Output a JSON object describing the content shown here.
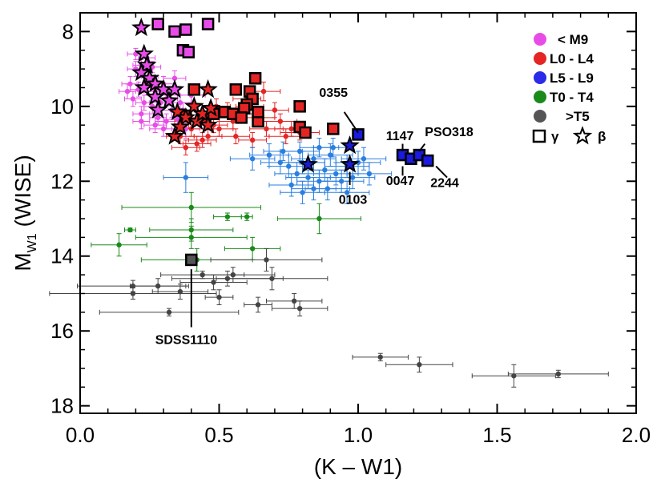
{
  "chart_data": {
    "type": "scatter",
    "xlabel": "(K – W1)",
    "ylabel_main": "M",
    "ylabel_sub": "W1",
    "ylabel_suffix": " (WISE)",
    "xlim": [
      0.0,
      2.0
    ],
    "ylim": [
      18.2,
      7.5
    ],
    "x_ticks": [
      0.0,
      0.5,
      1.0,
      1.5,
      2.0
    ],
    "x_tick_labels": [
      "0.0",
      "0.5",
      "1.0",
      "1.5",
      "2.0"
    ],
    "y_ticks": [
      8,
      10,
      12,
      14,
      16,
      18
    ],
    "y_tick_labels": [
      "8",
      "10",
      "12",
      "14",
      "16",
      "18"
    ],
    "colors": {
      "M9": "#e84ce8",
      "L0L4": "#e52424",
      "L5L9": "#2a7fe0",
      "L5L9_legend": "#2a2ae8",
      "T0T4": "#1a8a1a",
      "T5": "#444444",
      "gamma_blue": "#1a1ae0",
      "gamma_gray": "#555555",
      "beta_blue": "#1a1ad0"
    },
    "legend": [
      {
        "label": "< M9",
        "color": "#e84ce8"
      },
      {
        "label": "L0 - L4",
        "color": "#e52424"
      },
      {
        "label": "L5 - L9",
        "color": "#2a2ae8"
      },
      {
        "label": "T0 - T4",
        "color": "#1a8a1a"
      },
      {
        "label": ">T5",
        "color": "#555555"
      }
    ],
    "legend_symbols": {
      "gamma": "γ",
      "beta": "β"
    },
    "series": [
      {
        "name": "< M9",
        "color_key": "M9",
        "marker": "dot",
        "points": [
          [
            0.2,
            8.6,
            0.03,
            0.15
          ],
          [
            0.22,
            8.9,
            0.03,
            0.15
          ],
          [
            0.24,
            8.7,
            0.03,
            0.15
          ],
          [
            0.26,
            8.95,
            0.03,
            0.15
          ],
          [
            0.18,
            9.4,
            0.03,
            0.2
          ],
          [
            0.21,
            9.55,
            0.03,
            0.2
          ],
          [
            0.24,
            9.5,
            0.03,
            0.2
          ],
          [
            0.27,
            9.6,
            0.04,
            0.2
          ],
          [
            0.3,
            9.4,
            0.04,
            0.2
          ],
          [
            0.32,
            9.7,
            0.04,
            0.2
          ],
          [
            0.19,
            9.8,
            0.03,
            0.2
          ],
          [
            0.23,
            9.9,
            0.03,
            0.2
          ],
          [
            0.26,
            10.0,
            0.03,
            0.2
          ],
          [
            0.29,
            9.9,
            0.04,
            0.2
          ],
          [
            0.33,
            10.1,
            0.04,
            0.2
          ],
          [
            0.36,
            9.9,
            0.04,
            0.2
          ],
          [
            0.22,
            10.2,
            0.03,
            0.2
          ],
          [
            0.28,
            10.3,
            0.03,
            0.2
          ],
          [
            0.31,
            10.4,
            0.04,
            0.2
          ],
          [
            0.35,
            10.35,
            0.05,
            0.2
          ],
          [
            0.38,
            10.6,
            0.05,
            0.25
          ],
          [
            0.25,
            9.2,
            0.03,
            0.2
          ],
          [
            0.2,
            9.0,
            0.03,
            0.2
          ],
          [
            0.34,
            9.25,
            0.04,
            0.2
          ],
          [
            0.17,
            9.6,
            0.03,
            0.2
          ],
          [
            0.4,
            9.7,
            0.05,
            0.2
          ],
          [
            0.3,
            10.6,
            0.05,
            0.2
          ],
          [
            0.27,
            10.5,
            0.04,
            0.2
          ],
          [
            0.22,
            10.4,
            0.03,
            0.2
          ],
          [
            0.37,
            10.1,
            0.04,
            0.2
          ],
          [
            0.31,
            9.8,
            0.04,
            0.2
          ]
        ]
      },
      {
        "name": "L0 - L4",
        "color_key": "L0L4",
        "marker": "dot",
        "points": [
          [
            0.36,
            10.8,
            0.05,
            0.2
          ],
          [
            0.38,
            11.1,
            0.05,
            0.2
          ],
          [
            0.42,
            11.0,
            0.05,
            0.2
          ],
          [
            0.4,
            10.6,
            0.05,
            0.2
          ],
          [
            0.44,
            10.9,
            0.05,
            0.2
          ],
          [
            0.46,
            10.8,
            0.05,
            0.2
          ],
          [
            0.48,
            10.5,
            0.05,
            0.2
          ],
          [
            0.5,
            10.6,
            0.05,
            0.2
          ],
          [
            0.55,
            10.4,
            0.05,
            0.2
          ],
          [
            0.58,
            10.2,
            0.05,
            0.2
          ],
          [
            0.61,
            10.0,
            0.05,
            0.2
          ],
          [
            0.65,
            10.3,
            0.05,
            0.2
          ],
          [
            0.7,
            10.1,
            0.05,
            0.2
          ],
          [
            0.56,
            10.8,
            0.05,
            0.2
          ],
          [
            0.62,
            10.9,
            0.05,
            0.2
          ],
          [
            0.67,
            10.6,
            0.06,
            0.2
          ],
          [
            0.72,
            10.4,
            0.06,
            0.2
          ],
          [
            0.53,
            10.1,
            0.05,
            0.2
          ],
          [
            0.49,
            10.0,
            0.05,
            0.2
          ],
          [
            0.43,
            10.3,
            0.05,
            0.2
          ],
          [
            0.39,
            10.4,
            0.05,
            0.2
          ],
          [
            0.66,
            9.6,
            0.06,
            0.25
          ],
          [
            0.6,
            9.8,
            0.05,
            0.2
          ],
          [
            0.74,
            10.8,
            0.06,
            0.2
          ],
          [
            0.76,
            10.6,
            0.06,
            0.2
          ],
          [
            0.79,
            10.7,
            0.07,
            0.2
          ]
        ]
      },
      {
        "name": "L5 - L9",
        "color_key": "L5L9",
        "marker": "dot",
        "points": [
          [
            0.38,
            11.9,
            0.08,
            0.4
          ],
          [
            0.62,
            11.4,
            0.08,
            0.3
          ],
          [
            0.68,
            11.3,
            0.07,
            0.3
          ],
          [
            0.72,
            11.5,
            0.07,
            0.3
          ],
          [
            0.75,
            11.6,
            0.07,
            0.3
          ],
          [
            0.78,
            11.8,
            0.08,
            0.3
          ],
          [
            0.8,
            11.5,
            0.08,
            0.3
          ],
          [
            0.82,
            11.9,
            0.08,
            0.3
          ],
          [
            0.84,
            11.4,
            0.08,
            0.3
          ],
          [
            0.86,
            12.0,
            0.08,
            0.3
          ],
          [
            0.88,
            11.7,
            0.08,
            0.3
          ],
          [
            0.9,
            11.3,
            0.08,
            0.3
          ],
          [
            0.92,
            11.8,
            0.08,
            0.3
          ],
          [
            0.94,
            12.0,
            0.08,
            0.3
          ],
          [
            0.96,
            11.6,
            0.08,
            0.3
          ],
          [
            0.98,
            11.9,
            0.08,
            0.3
          ],
          [
            1.0,
            11.5,
            0.08,
            0.3
          ],
          [
            1.02,
            11.4,
            0.08,
            0.3
          ],
          [
            0.86,
            11.1,
            0.07,
            0.25
          ],
          [
            0.79,
            11.2,
            0.07,
            0.25
          ],
          [
            0.73,
            11.2,
            0.07,
            0.25
          ],
          [
            0.91,
            11.1,
            0.07,
            0.25
          ],
          [
            0.96,
            12.3,
            0.08,
            0.3
          ],
          [
            0.84,
            12.2,
            0.08,
            0.3
          ],
          [
            0.8,
            12.3,
            0.08,
            0.3
          ],
          [
            0.76,
            12.1,
            0.08,
            0.3
          ],
          [
            1.04,
            11.8,
            0.08,
            0.3
          ],
          [
            0.89,
            12.2,
            0.08,
            0.3
          ]
        ]
      },
      {
        "name": "T0 - T4",
        "color_key": "T0T4",
        "marker": "dot",
        "points": [
          [
            0.14,
            13.7,
            0.1,
            0.3
          ],
          [
            0.18,
            13.3,
            0.02,
            0.05
          ],
          [
            0.4,
            13.3,
            0.15,
            0.3
          ],
          [
            0.4,
            13.5,
            0.2,
            0.3
          ],
          [
            0.4,
            12.7,
            0.25,
            0.4
          ],
          [
            0.53,
            12.95,
            0.05,
            0.1
          ],
          [
            0.6,
            12.95,
            0.02,
            0.1
          ],
          [
            0.62,
            13.8,
            0.1,
            0.3
          ],
          [
            0.86,
            13.0,
            0.15,
            0.4
          ],
          [
            0.42,
            14.1,
            0.2,
            0.3
          ]
        ]
      },
      {
        "name": ">T5",
        "color_key": "T5",
        "marker": "dot",
        "points": [
          [
            0.19,
            14.8,
            0.2,
            0.15
          ],
          [
            0.19,
            15.0,
            0.3,
            0.15
          ],
          [
            0.28,
            14.8,
            0.1,
            0.2
          ],
          [
            0.36,
            14.95,
            0.1,
            0.2
          ],
          [
            0.32,
            15.5,
            0.25,
            0.1
          ],
          [
            0.44,
            14.5,
            0.15,
            0.1
          ],
          [
            0.48,
            14.7,
            0.12,
            0.2
          ],
          [
            0.5,
            15.1,
            0.05,
            0.2
          ],
          [
            0.53,
            14.6,
            0.2,
            0.2
          ],
          [
            0.55,
            14.5,
            0.15,
            0.2
          ],
          [
            0.64,
            15.3,
            0.05,
            0.2
          ],
          [
            0.67,
            14.1,
            0.2,
            0.3
          ],
          [
            0.69,
            14.6,
            0.2,
            0.3
          ],
          [
            0.77,
            15.2,
            0.1,
            0.2
          ],
          [
            0.79,
            15.4,
            0.1,
            0.2
          ],
          [
            1.08,
            16.7,
            0.1,
            0.1
          ],
          [
            1.22,
            16.9,
            0.12,
            0.2
          ],
          [
            1.56,
            17.2,
            0.15,
            0.3
          ],
          [
            1.72,
            17.15,
            0.18,
            0.1
          ]
        ]
      },
      {
        "name": "M9 gamma",
        "color_key": "M9",
        "marker": "square",
        "points": [
          [
            0.28,
            7.8
          ],
          [
            0.34,
            8.0
          ],
          [
            0.38,
            7.95
          ],
          [
            0.46,
            7.8
          ],
          [
            0.37,
            8.5
          ],
          [
            0.39,
            8.55
          ]
        ]
      },
      {
        "name": "L gamma",
        "color_key": "L0L4",
        "marker": "square",
        "points": [
          [
            0.41,
            9.55
          ],
          [
            0.56,
            9.55
          ],
          [
            0.63,
            9.25
          ],
          [
            0.61,
            9.6
          ],
          [
            0.62,
            9.8
          ],
          [
            0.6,
            9.95
          ],
          [
            0.59,
            10.05
          ],
          [
            0.52,
            10.15
          ],
          [
            0.55,
            10.2
          ],
          [
            0.58,
            10.3
          ],
          [
            0.64,
            10.4
          ],
          [
            0.64,
            10.15
          ],
          [
            0.79,
            10.0
          ],
          [
            0.79,
            10.55
          ],
          [
            0.81,
            10.7
          ],
          [
            0.91,
            10.6
          ],
          [
            0.45,
            10.3
          ],
          [
            0.48,
            10.2
          ],
          [
            0.38,
            10.25
          ]
        ]
      },
      {
        "name": "late-L gamma",
        "color_key": "gamma_blue",
        "marker": "square",
        "points": [
          [
            1.0,
            10.75
          ],
          [
            1.16,
            11.3
          ],
          [
            1.19,
            11.4
          ],
          [
            1.22,
            11.3
          ],
          [
            1.25,
            11.45
          ]
        ]
      },
      {
        "name": "T gamma",
        "color_key": "gamma_gray",
        "marker": "square",
        "points": [
          [
            0.4,
            14.1
          ]
        ]
      },
      {
        "name": "M9 beta",
        "color_key": "M9",
        "marker": "star",
        "points": [
          [
            0.22,
            7.9
          ],
          [
            0.23,
            8.6
          ],
          [
            0.24,
            8.9
          ],
          [
            0.22,
            9.1
          ],
          [
            0.25,
            9.25
          ],
          [
            0.27,
            9.4
          ],
          [
            0.23,
            9.5
          ],
          [
            0.3,
            9.55
          ],
          [
            0.27,
            9.75
          ],
          [
            0.32,
            9.85
          ],
          [
            0.34,
            9.55
          ],
          [
            0.28,
            10.1
          ]
        ]
      },
      {
        "name": "L beta",
        "color_key": "L0L4",
        "marker": "star",
        "points": [
          [
            0.35,
            10.15
          ],
          [
            0.38,
            10.3
          ],
          [
            0.41,
            10.0
          ],
          [
            0.42,
            10.4
          ],
          [
            0.44,
            10.2
          ],
          [
            0.46,
            9.55
          ],
          [
            0.47,
            10.05
          ],
          [
            0.34,
            10.8
          ],
          [
            0.46,
            10.5
          ],
          [
            0.36,
            10.55
          ]
        ]
      },
      {
        "name": "late-L beta",
        "color_key": "beta_blue",
        "marker": "star",
        "points": [
          [
            0.97,
            11.05
          ],
          [
            0.82,
            11.55
          ],
          [
            0.97,
            11.55
          ]
        ]
      }
    ],
    "annotations": [
      {
        "text": "0355",
        "x": 0.86,
        "y": 9.75,
        "anchor": "start",
        "line": [
          [
            0.95,
            10.15
          ],
          [
            1.0,
            10.7
          ]
        ]
      },
      {
        "text": "1147",
        "x": 1.1,
        "y": 10.9,
        "anchor": "start",
        "line": [
          [
            1.16,
            11.0
          ],
          [
            1.16,
            11.2
          ]
        ]
      },
      {
        "text": "PSO318",
        "x": 1.24,
        "y": 10.8,
        "anchor": "start",
        "line": [
          [
            1.24,
            11.0
          ],
          [
            1.22,
            11.2
          ]
        ]
      },
      {
        "text": "0047",
        "x": 1.1,
        "y": 12.1,
        "anchor": "start",
        "line": [
          [
            1.16,
            11.6
          ],
          [
            1.16,
            11.85
          ]
        ]
      },
      {
        "text": "2244",
        "x": 1.26,
        "y": 12.15,
        "anchor": "start",
        "line": [
          [
            1.28,
            11.6
          ],
          [
            1.32,
            11.9
          ]
        ]
      },
      {
        "text": "0103",
        "x": 0.93,
        "y": 12.6,
        "anchor": "start",
        "line": [
          [
            0.97,
            11.75
          ],
          [
            0.97,
            12.1
          ]
        ]
      },
      {
        "text": "SDSS1110",
        "x": 0.27,
        "y": 16.35,
        "anchor": "start",
        "line": [
          [
            0.4,
            14.35
          ],
          [
            0.4,
            15.9
          ]
        ]
      }
    ]
  }
}
